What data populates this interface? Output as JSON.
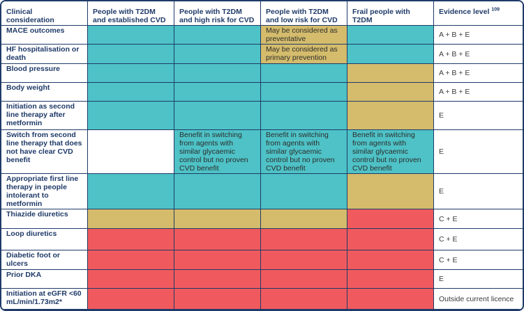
{
  "colors": {
    "teal": "#4ec2c6",
    "gold": "#d4bc6c",
    "red": "#f05a5e",
    "border": "#1f3a68"
  },
  "headers": {
    "clinical": "Clinical consideration",
    "col1": "People with T2DM and established CVD",
    "col2": "People with T2DM and high risk for CVD",
    "col3": "People with T2DM and low risk for CVD",
    "col4": "Frail people with T2DM",
    "evidence": "Evidence level",
    "evidence_ref": "109"
  },
  "rows": [
    {
      "label": "MACE outcomes",
      "evidence": "A + B + E",
      "cells": [
        {
          "color": "teal",
          "text": ""
        },
        {
          "color": "teal",
          "text": ""
        },
        {
          "color": "gold",
          "text": "May be considered as preventative"
        },
        {
          "color": "teal",
          "text": ""
        }
      ]
    },
    {
      "label": "HF hospitalisation or death",
      "evidence": "A + B + E",
      "cells": [
        {
          "color": "teal",
          "text": ""
        },
        {
          "color": "teal",
          "text": ""
        },
        {
          "color": "gold",
          "text": "May be considered as primary prevention"
        },
        {
          "color": "teal",
          "text": ""
        }
      ]
    },
    {
      "label": "Blood pressure",
      "evidence": "A + B + E",
      "cells": [
        {
          "color": "teal",
          "text": ""
        },
        {
          "color": "teal",
          "text": ""
        },
        {
          "color": "teal",
          "text": ""
        },
        {
          "color": "gold",
          "text": ""
        }
      ]
    },
    {
      "label": "Body weight",
      "evidence": "A + B + E",
      "cells": [
        {
          "color": "teal",
          "text": ""
        },
        {
          "color": "teal",
          "text": ""
        },
        {
          "color": "teal",
          "text": ""
        },
        {
          "color": "gold",
          "text": ""
        }
      ]
    },
    {
      "label": "Initiation as second line therapy after metformin",
      "evidence": "E",
      "cells": [
        {
          "color": "teal",
          "text": ""
        },
        {
          "color": "teal",
          "text": ""
        },
        {
          "color": "teal",
          "text": ""
        },
        {
          "color": "gold",
          "text": ""
        }
      ]
    },
    {
      "label": "Switch from second line therapy that does not have clear CVD benefit",
      "evidence": "E",
      "cells": [
        {
          "color": "white",
          "text": ""
        },
        {
          "color": "teal",
          "text": "Benefit in switching from agents with similar glycaemic control but no proven CVD benefit"
        },
        {
          "color": "teal",
          "text": "Benefit in switching from agents with similar glycaemic control but no proven CVD benefit"
        },
        {
          "color": "teal",
          "text": "Benefit in switching from agents with similar glycaemic control but no proven CVD benefit"
        }
      ]
    },
    {
      "label": "Appropriate first line therapy in people intolerant to metformin",
      "evidence": "E",
      "cells": [
        {
          "color": "teal",
          "text": ""
        },
        {
          "color": "teal",
          "text": ""
        },
        {
          "color": "teal",
          "text": ""
        },
        {
          "color": "gold",
          "text": ""
        }
      ]
    },
    {
      "label": "Thiazide diuretics",
      "evidence": "C + E",
      "cells": [
        {
          "color": "gold",
          "text": ""
        },
        {
          "color": "gold",
          "text": ""
        },
        {
          "color": "gold",
          "text": ""
        },
        {
          "color": "red",
          "text": ""
        }
      ]
    },
    {
      "label": "Loop diuretics",
      "evidence": "C + E",
      "cells": [
        {
          "color": "red",
          "text": ""
        },
        {
          "color": "red",
          "text": ""
        },
        {
          "color": "red",
          "text": ""
        },
        {
          "color": "red",
          "text": ""
        }
      ]
    },
    {
      "label": "Diabetic foot or ulcers",
      "evidence": "C + E",
      "cells": [
        {
          "color": "red",
          "text": ""
        },
        {
          "color": "red",
          "text": ""
        },
        {
          "color": "red",
          "text": ""
        },
        {
          "color": "red",
          "text": ""
        }
      ]
    },
    {
      "label": "Prior DKA",
      "evidence": "E",
      "cells": [
        {
          "color": "red",
          "text": ""
        },
        {
          "color": "red",
          "text": ""
        },
        {
          "color": "red",
          "text": ""
        },
        {
          "color": "red",
          "text": ""
        }
      ]
    },
    {
      "label": "Initiation at eGFR <60 mL/min/1.73m2*",
      "evidence": "Outside current licence",
      "cells": [
        {
          "color": "red",
          "text": ""
        },
        {
          "color": "red",
          "text": ""
        },
        {
          "color": "red",
          "text": ""
        },
        {
          "color": "red",
          "text": ""
        }
      ]
    }
  ]
}
